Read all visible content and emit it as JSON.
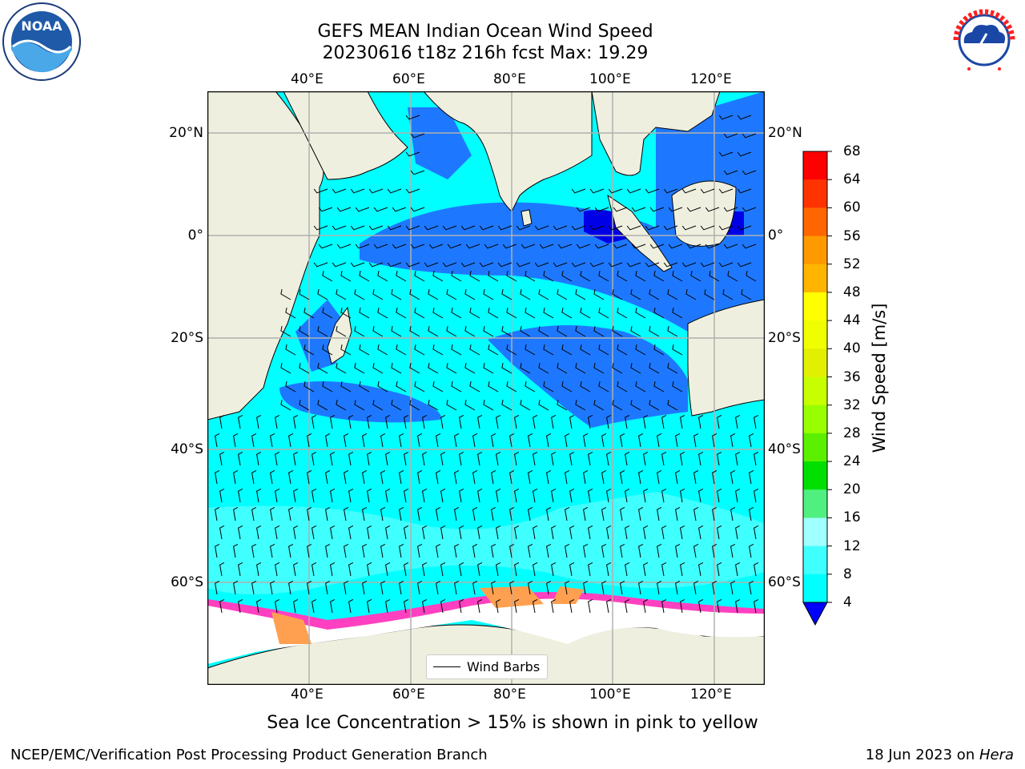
{
  "header": {
    "title_line1": "GEFS MEAN Indian Ocean Wind Speed",
    "title_line2": "20230616 t18z 216h fcst   Max: 19.29"
  },
  "map": {
    "lon_ticks": [
      "40°E",
      "60°E",
      "80°E",
      "100°E",
      "120°E"
    ],
    "lat_ticks": [
      "20°N",
      "0°",
      "20°S",
      "40°S",
      "60°S"
    ],
    "legend_label": "Wind Barbs",
    "colors": {
      "land": "#efefdf",
      "ice_free_ocean_light": "#00ffff",
      "ocean_4_8": "#1e78ff",
      "ocean_below_4": "#0000e6",
      "ocean_12_16": "#40ffff",
      "sea_ice_white": "#ffffff",
      "sea_ice_pink": "#ff40c0",
      "sea_ice_orange": "#ffa050"
    }
  },
  "colorbar": {
    "label": "Wind Speed [m/s]",
    "ticks": [
      "68",
      "64",
      "60",
      "56",
      "52",
      "48",
      "44",
      "40",
      "36",
      "32",
      "28",
      "24",
      "20",
      "16",
      "12",
      "8",
      "4"
    ],
    "colors": [
      "#ff0000",
      "#ff3300",
      "#ff6600",
      "#ff9900",
      "#ffb400",
      "#ffff00",
      "#f0ff00",
      "#e0f000",
      "#c8ff00",
      "#99ff00",
      "#5bf000",
      "#00e000",
      "#50f080",
      "#a0ffff",
      "#40ffff",
      "#00ffff",
      "#1e78ff"
    ],
    "under_color": "#0000ff"
  },
  "footer": {
    "caption": "Sea Ice Concentration > 15% is shown in pink to yellow",
    "credit": "NCEP/EMC/Verification Post Processing Product Generation Branch",
    "date": "18 Jun 2023 on ",
    "host": "Hera"
  },
  "logos": {
    "noaa": "NOAA",
    "nws": "NATIONAL WEATHER SERVICE"
  }
}
